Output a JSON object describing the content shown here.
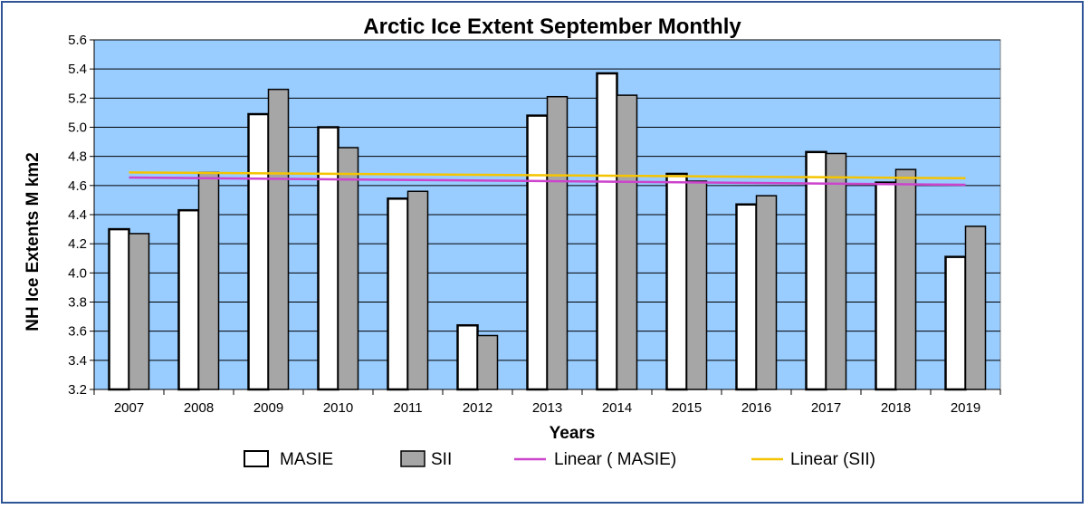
{
  "chart_data": {
    "type": "bar",
    "title": "Arctic Ice Extent September Monthly",
    "xlabel": "Years",
    "ylabel": "NH Ice Extents M km2",
    "categories": [
      "2007",
      "2008",
      "2009",
      "2010",
      "2011",
      "2012",
      "2013",
      "2014",
      "2015",
      "2016",
      "2017",
      "2018",
      "2019"
    ],
    "series": [
      {
        "name": "MASIE",
        "color": "#ffffff",
        "values": [
          4.3,
          4.43,
          5.09,
          5.0,
          4.51,
          3.64,
          5.08,
          5.37,
          4.68,
          4.47,
          4.83,
          4.62,
          4.11
        ]
      },
      {
        "name": "SII",
        "color": "#a6a6a6",
        "values": [
          4.27,
          4.69,
          5.26,
          4.86,
          4.56,
          3.57,
          5.21,
          5.22,
          4.63,
          4.53,
          4.82,
          4.71,
          4.32
        ]
      }
    ],
    "trendlines": [
      {
        "name": "Linear ( MASIE)",
        "color": "#cc44cc",
        "start": 4.655,
        "end": 4.605
      },
      {
        "name": "Linear (SII)",
        "color": "#f5c400",
        "start": 4.69,
        "end": 4.65
      }
    ],
    "ylim": [
      3.2,
      5.6
    ],
    "yticks": [
      "3.2",
      "3.4",
      "3.6",
      "3.8",
      "4.0",
      "4.2",
      "4.4",
      "4.6",
      "4.8",
      "5.0",
      "5.2",
      "5.4",
      "5.6"
    ],
    "plot_background": "#99ccff",
    "grid": true,
    "legend_position": "bottom"
  }
}
